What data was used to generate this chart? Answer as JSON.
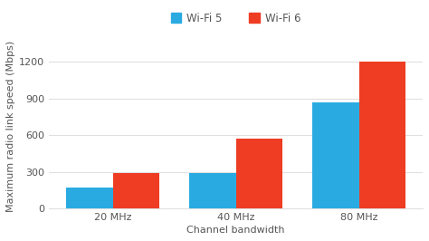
{
  "categories": [
    "20 MHz",
    "40 MHz",
    "80 MHz"
  ],
  "wifi5_values": [
    173,
    286,
    867
  ],
  "wifi6_values": [
    286,
    574,
    1200
  ],
  "wifi5_color": "#29ABE2",
  "wifi6_color": "#EE3D23",
  "ylabel": "Maximum radio link speed (Mbps)",
  "xlabel": "Channel bandwidth",
  "legend_labels": [
    "Wi-Fi 5",
    "Wi-Fi 6"
  ],
  "ylim": [
    0,
    1350
  ],
  "yticks": [
    0,
    300,
    600,
    900,
    1200
  ],
  "background_color": "#ffffff",
  "bar_width": 0.38,
  "axis_fontsize": 8,
  "tick_fontsize": 8,
  "legend_fontsize": 8.5,
  "grid_color": "#e0e0e0"
}
